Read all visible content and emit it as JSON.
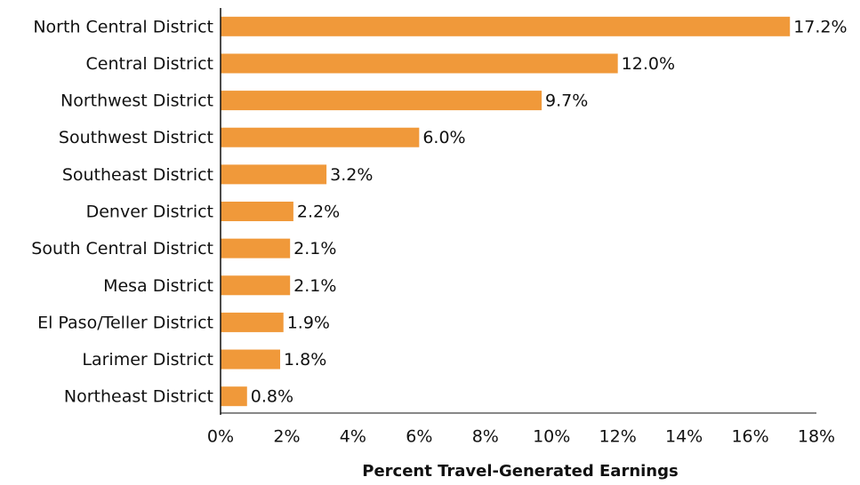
{
  "chart_data": {
    "type": "bar",
    "orientation": "horizontal",
    "x_label": "Percent Travel-Generated Earnings",
    "categories": [
      "North Central District",
      "Central District",
      "Northwest District",
      "Southwest District",
      "Southeast District",
      "Denver District",
      "South Central District",
      "Mesa District",
      "El Paso/Teller District",
      "Larimer District",
      "Northeast District"
    ],
    "values": [
      17.2,
      12.0,
      9.7,
      6.0,
      3.2,
      2.2,
      2.1,
      2.1,
      1.9,
      1.8,
      0.8
    ],
    "value_labels": [
      "17.2%",
      "12.0%",
      "9.7%",
      "6.0%",
      "3.2%",
      "2.2%",
      "2.1%",
      "2.1%",
      "1.9%",
      "1.8%",
      "0.8%"
    ],
    "color": "#f0993a",
    "xlim": [
      0,
      18
    ],
    "xticks": [
      {
        "value": 0,
        "label": "0%"
      },
      {
        "value": 2,
        "label": "2%"
      },
      {
        "value": 4,
        "label": "4%"
      },
      {
        "value": 6,
        "label": "6%"
      },
      {
        "value": 8,
        "label": "8%"
      },
      {
        "value": 10,
        "label": "10%"
      },
      {
        "value": 12,
        "label": "12%"
      },
      {
        "value": 14,
        "label": "14%"
      },
      {
        "value": 16,
        "label": "16%"
      },
      {
        "value": 18,
        "label": "18%"
      }
    ],
    "grid": false
  }
}
